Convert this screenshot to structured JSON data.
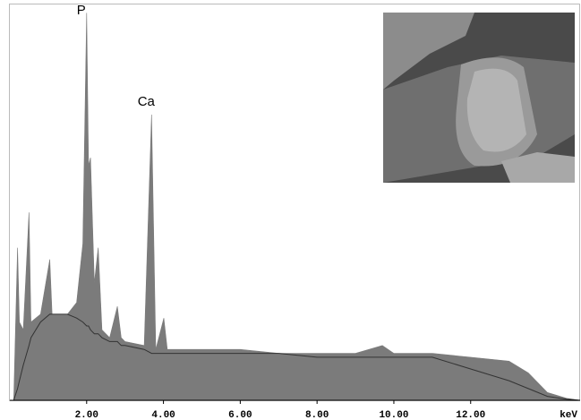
{
  "chart_data": {
    "type": "area",
    "x_label": "keV",
    "x": [
      0.1,
      0.2,
      0.25,
      0.35,
      0.5,
      0.55,
      0.8,
      1.04,
      1.1,
      1.5,
      1.74,
      1.9,
      2.0,
      2.05,
      2.1,
      2.2,
      2.3,
      2.4,
      2.6,
      2.8,
      2.9,
      3.0,
      3.5,
      3.69,
      3.8,
      4.01,
      4.1,
      5,
      6,
      7,
      8,
      9,
      9.7,
      10,
      11,
      12,
      13,
      13.5,
      14,
      14.5,
      14.85
    ],
    "series": [
      {
        "color": "#7b7b7b",
        "values": [
          0,
          39,
          20,
          18,
          48,
          20,
          22,
          36,
          22,
          22,
          25,
          40,
          99,
          60,
          62,
          30,
          39,
          18,
          16,
          24,
          16,
          15,
          14,
          73,
          13,
          21,
          13,
          13,
          13,
          12,
          12,
          12,
          14,
          12,
          12,
          11,
          10,
          7,
          2,
          0.5,
          0
        ]
      },
      {
        "color": "#333333",
        "line_only": true,
        "values": [
          0,
          3,
          5,
          9,
          14,
          16,
          20,
          22,
          22,
          22,
          21,
          20,
          19,
          19,
          18,
          17,
          17,
          16,
          15,
          15,
          14,
          14,
          13,
          12,
          12,
          12,
          12,
          12,
          12,
          12,
          11,
          11,
          11,
          11,
          11,
          8,
          5,
          3,
          1,
          0.3,
          0
        ]
      }
    ],
    "annotations": [
      {
        "text": "P",
        "x": 2.0
      },
      {
        "text": "Ca",
        "x": 3.69
      }
    ],
    "xlim": [
      0,
      14.85
    ],
    "ylim": [
      0,
      100
    ],
    "xticks": [
      {
        "value": 2,
        "label": "2.00"
      },
      {
        "value": 4,
        "label": "4.00"
      },
      {
        "value": 6,
        "label": "6.00"
      },
      {
        "value": 8,
        "label": "8.00"
      },
      {
        "value": 10,
        "label": "10.00"
      },
      {
        "value": 12,
        "label": "12.00"
      }
    ]
  }
}
